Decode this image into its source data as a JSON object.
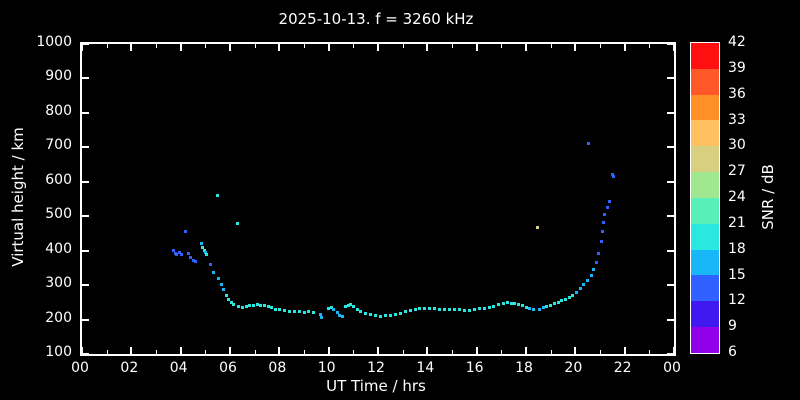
{
  "title": "2025-10-13. f = 3260 kHz",
  "axes": {
    "xlabel": "UT Time / hrs",
    "ylabel": "Virtual height / km",
    "x_tick_labels": [
      "00",
      "02",
      "04",
      "06",
      "08",
      "10",
      "12",
      "14",
      "16",
      "18",
      "20",
      "22",
      "00"
    ],
    "x_tick_values": [
      0,
      2,
      4,
      6,
      8,
      10,
      12,
      14,
      16,
      18,
      20,
      22,
      24
    ],
    "x_minor_values": [
      1,
      3,
      5,
      7,
      9,
      11,
      13,
      15,
      17,
      19,
      21,
      23
    ],
    "y_tick_values": [
      100,
      200,
      300,
      400,
      500,
      600,
      700,
      800,
      900,
      1000
    ],
    "x_range": [
      0,
      24
    ],
    "y_range": [
      100,
      1000
    ]
  },
  "colorbar": {
    "label": "SNR / dB",
    "ticks": [
      42,
      39,
      36,
      33,
      30,
      27,
      24,
      21,
      18,
      15,
      12,
      9,
      6
    ],
    "bands": [
      {
        "snr_min": 39,
        "snr_max": 42,
        "color": "#ff1010"
      },
      {
        "snr_min": 36,
        "snr_max": 39,
        "color": "#ff5828"
      },
      {
        "snr_min": 33,
        "snr_max": 36,
        "color": "#ff9028"
      },
      {
        "snr_min": 30,
        "snr_max": 33,
        "color": "#ffc060"
      },
      {
        "snr_min": 27,
        "snr_max": 30,
        "color": "#d8d080"
      },
      {
        "snr_min": 24,
        "snr_max": 27,
        "color": "#a0e890"
      },
      {
        "snr_min": 21,
        "snr_max": 24,
        "color": "#58f0b8"
      },
      {
        "snr_min": 18,
        "snr_max": 21,
        "color": "#28e8e0"
      },
      {
        "snr_min": 15,
        "snr_max": 18,
        "color": "#18b8f8"
      },
      {
        "snr_min": 12,
        "snr_max": 15,
        "color": "#3060ff"
      },
      {
        "snr_min": 9,
        "snr_max": 12,
        "color": "#4018f0"
      },
      {
        "snr_min": 6,
        "snr_max": 9,
        "color": "#9000e8"
      }
    ]
  },
  "colors": {
    "background": "#000000",
    "foreground": "#ffffff"
  },
  "chart_data": {
    "type": "scatter",
    "title": "2025-10-13. f = 3260 kHz",
    "xlabel": "UT Time / hrs",
    "ylabel": "Virtual height / km",
    "xlim": [
      0,
      24
    ],
    "ylim": [
      100,
      1000
    ],
    "legend": "colorbar SNR / dB, 6-42 in 3 dB bands",
    "series": [
      {
        "name": "ionosonde-echoes",
        "point_format": [
          "ut_hours",
          "virtual_height_km",
          "snr_db"
        ],
        "points": [
          [
            3.7,
            400,
            12
          ],
          [
            3.78,
            393,
            12
          ],
          [
            3.85,
            390,
            13
          ],
          [
            3.95,
            396,
            12
          ],
          [
            4.05,
            388,
            13
          ],
          [
            4.2,
            455,
            13
          ],
          [
            4.3,
            392,
            12
          ],
          [
            4.4,
            380,
            13
          ],
          [
            4.5,
            372,
            12
          ],
          [
            4.6,
            368,
            13
          ],
          [
            4.85,
            420,
            17
          ],
          [
            4.9,
            408,
            18
          ],
          [
            4.95,
            400,
            18
          ],
          [
            5.0,
            395,
            17
          ],
          [
            5.05,
            390,
            18
          ],
          [
            5.2,
            360,
            14
          ],
          [
            5.35,
            338,
            15
          ],
          [
            5.5,
            560,
            18
          ],
          [
            5.55,
            318,
            16
          ],
          [
            5.65,
            302,
            17
          ],
          [
            5.75,
            288,
            17
          ],
          [
            5.85,
            270,
            18
          ],
          [
            5.95,
            258,
            18
          ],
          [
            6.05,
            250,
            18
          ],
          [
            6.15,
            244,
            19
          ],
          [
            6.3,
            480,
            18
          ],
          [
            6.35,
            238,
            19
          ],
          [
            6.5,
            236,
            19
          ],
          [
            6.65,
            238,
            19
          ],
          [
            6.8,
            240,
            19
          ],
          [
            6.95,
            242,
            19
          ],
          [
            7.1,
            244,
            19
          ],
          [
            7.25,
            242,
            19
          ],
          [
            7.4,
            240,
            18
          ],
          [
            7.55,
            238,
            18
          ],
          [
            7.7,
            234,
            18
          ],
          [
            7.85,
            230,
            18
          ],
          [
            8.0,
            228,
            18
          ],
          [
            8.2,
            226,
            18
          ],
          [
            8.4,
            224,
            18
          ],
          [
            8.6,
            222,
            19
          ],
          [
            8.8,
            224,
            18
          ],
          [
            9.0,
            221,
            18
          ],
          [
            9.2,
            222,
            18
          ],
          [
            9.4,
            220,
            18
          ],
          [
            9.65,
            214,
            17
          ],
          [
            9.7,
            205,
            16
          ],
          [
            10.0,
            232,
            18
          ],
          [
            10.1,
            236,
            18
          ],
          [
            10.2,
            228,
            17
          ],
          [
            10.35,
            220,
            17
          ],
          [
            10.45,
            212,
            16
          ],
          [
            10.55,
            208,
            16
          ],
          [
            10.7,
            238,
            18
          ],
          [
            10.8,
            242,
            19
          ],
          [
            10.9,
            245,
            19
          ],
          [
            11.0,
            238,
            18
          ],
          [
            11.15,
            230,
            18
          ],
          [
            11.3,
            224,
            18
          ],
          [
            11.5,
            218,
            18
          ],
          [
            11.7,
            214,
            18
          ],
          [
            11.9,
            211,
            18
          ],
          [
            12.1,
            209,
            18
          ],
          [
            12.3,
            211,
            18
          ],
          [
            12.5,
            213,
            18
          ],
          [
            12.7,
            216,
            19
          ],
          [
            12.9,
            219,
            19
          ],
          [
            13.1,
            222,
            19
          ],
          [
            13.3,
            226,
            19
          ],
          [
            13.5,
            229,
            19
          ],
          [
            13.7,
            231,
            19
          ],
          [
            13.9,
            233,
            19
          ],
          [
            14.1,
            231,
            19
          ],
          [
            14.3,
            232,
            18
          ],
          [
            14.5,
            230,
            18
          ],
          [
            14.7,
            228,
            19
          ],
          [
            14.9,
            229,
            19
          ],
          [
            15.1,
            228,
            18
          ],
          [
            15.3,
            229,
            18
          ],
          [
            15.5,
            226,
            18
          ],
          [
            15.7,
            227,
            18
          ],
          [
            15.9,
            229,
            18
          ],
          [
            16.1,
            231,
            19
          ],
          [
            16.3,
            233,
            19
          ],
          [
            16.5,
            236,
            19
          ],
          [
            16.7,
            239,
            19
          ],
          [
            16.9,
            243,
            20
          ],
          [
            17.1,
            247,
            20
          ],
          [
            17.25,
            250,
            20
          ],
          [
            17.4,
            248,
            19
          ],
          [
            17.55,
            246,
            19
          ],
          [
            17.7,
            243,
            18
          ],
          [
            17.85,
            240,
            18
          ],
          [
            18.0,
            236,
            18
          ],
          [
            18.15,
            232,
            17
          ],
          [
            18.3,
            230,
            17
          ],
          [
            18.45,
            468,
            27
          ],
          [
            18.55,
            230,
            17
          ],
          [
            18.7,
            234,
            17
          ],
          [
            18.85,
            238,
            18
          ],
          [
            19.0,
            242,
            18
          ],
          [
            19.15,
            246,
            18
          ],
          [
            19.3,
            250,
            18
          ],
          [
            19.45,
            254,
            18
          ],
          [
            19.6,
            259,
            18
          ],
          [
            19.75,
            264,
            18
          ],
          [
            19.9,
            271,
            18
          ],
          [
            20.05,
            279,
            17
          ],
          [
            20.2,
            290,
            17
          ],
          [
            20.35,
            302,
            16
          ],
          [
            20.5,
            312,
            16
          ],
          [
            20.55,
            710,
            12
          ],
          [
            20.65,
            328,
            15
          ],
          [
            20.75,
            345,
            15
          ],
          [
            20.85,
            365,
            14
          ],
          [
            20.95,
            392,
            14
          ],
          [
            21.05,
            428,
            13
          ],
          [
            21.1,
            455,
            13
          ],
          [
            21.15,
            482,
            13
          ],
          [
            21.2,
            505,
            13
          ],
          [
            21.3,
            525,
            12
          ],
          [
            21.38,
            542,
            13
          ],
          [
            21.5,
            622,
            12
          ],
          [
            21.55,
            616,
            12
          ]
        ]
      }
    ]
  }
}
